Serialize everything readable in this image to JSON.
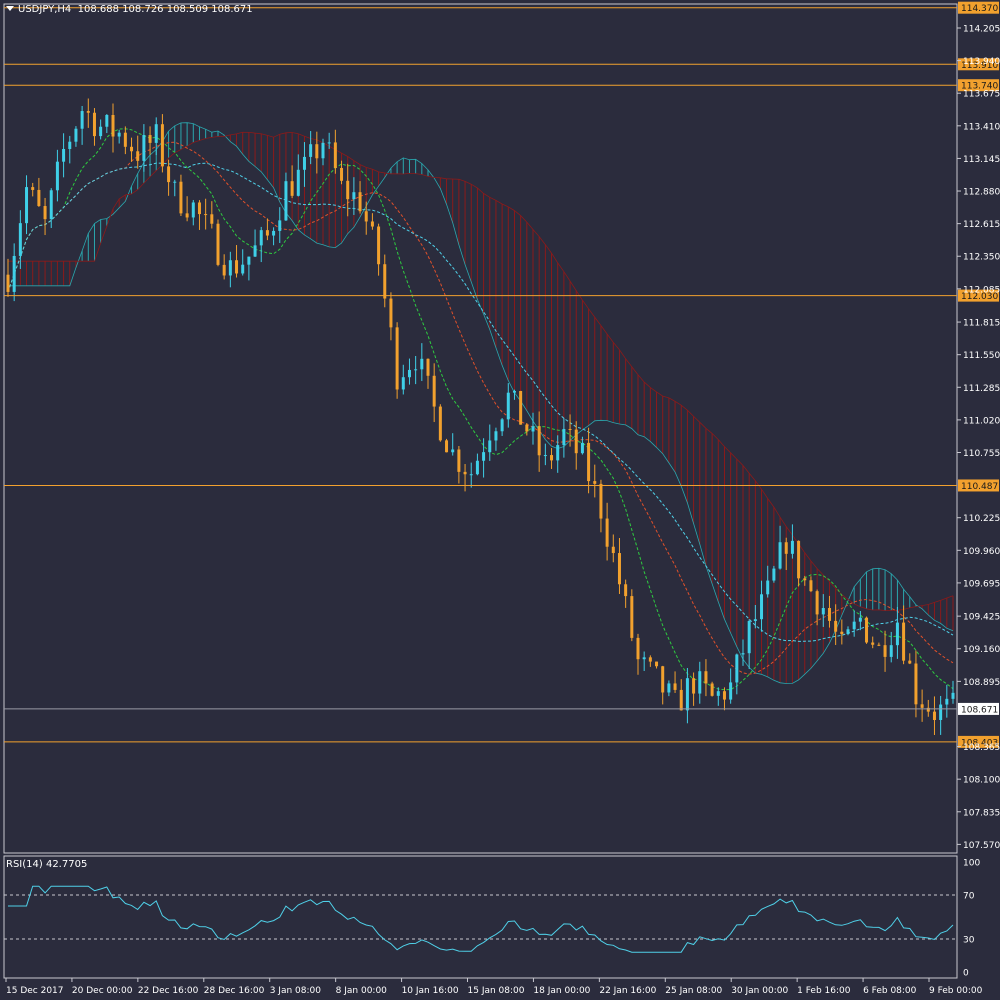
{
  "header": {
    "symbol": "USDJPY,H4",
    "ohlc": "108.688 108.726 108.509 108.671"
  },
  "rsi_header": {
    "label": "RSI(14) 42.7705"
  },
  "colors": {
    "background": "#2b2c3d",
    "bull_candle": "#3fd0e8",
    "bear_candle": "#f2a12e",
    "level_line": "#f2a12e",
    "cloud_bear": "#8b1a1a",
    "cloud_bull": "#2aa7ae",
    "ma_fast": "#2ecc40",
    "ma_mid": "#e0502a",
    "ma_slow": "#4fd0e8",
    "rsi_line": "#4fd0e8",
    "price_line": "#9a9aa6"
  },
  "chart_data": [
    {
      "type": "candlestick",
      "title": "USDJPY,H4",
      "y_ticks": [
        "114.205",
        "113.940",
        "113.675",
        "113.410",
        "113.145",
        "112.880",
        "112.615",
        "112.350",
        "112.085",
        "111.815",
        "111.550",
        "111.285",
        "111.020",
        "110.755",
        "110.225",
        "109.960",
        "109.695",
        "109.425",
        "109.160",
        "108.895",
        "108.365",
        "108.100",
        "107.835",
        "107.570"
      ],
      "x_ticks": [
        "15 Dec 2017",
        "20 Dec 00:00",
        "22 Dec 16:00",
        "28 Dec 16:00",
        "3 Jan 08:00",
        "8 Jan 00:00",
        "10 Jan 16:00",
        "15 Jan 08:00",
        "18 Jan 00:00",
        "22 Jan 16:00",
        "25 Jan 08:00",
        "30 Jan 00:00",
        "1 Feb 16:00",
        "6 Feb 08:00",
        "9 Feb 00:00"
      ],
      "ylim": [
        107.5,
        114.4
      ],
      "levels": [
        "114.370",
        "113.910",
        "113.740",
        "112.030",
        "110.487",
        "108.403"
      ],
      "current_price": "108.671",
      "close_path": [
        [
          0,
          112.2
        ],
        [
          3,
          112.9
        ],
        [
          6,
          112.6
        ],
        [
          9,
          113.2
        ],
        [
          12,
          113.55
        ],
        [
          15,
          113.4
        ],
        [
          18,
          113.35
        ],
        [
          21,
          113.2
        ],
        [
          24,
          113.3
        ],
        [
          27,
          112.85
        ],
        [
          30,
          112.75
        ],
        [
          33,
          112.5
        ],
        [
          36,
          112.25
        ],
        [
          39,
          112.35
        ],
        [
          42,
          112.5
        ],
        [
          45,
          112.9
        ],
        [
          48,
          113.05
        ],
        [
          51,
          113.3
        ],
        [
          54,
          112.9
        ],
        [
          57,
          112.8
        ],
        [
          60,
          112.3
        ],
        [
          63,
          111.4
        ],
        [
          66,
          111.55
        ],
        [
          69,
          111.1
        ],
        [
          72,
          110.75
        ],
        [
          75,
          110.6
        ],
        [
          78,
          110.95
        ],
        [
          81,
          111.2
        ],
        [
          84,
          110.95
        ],
        [
          87,
          110.65
        ],
        [
          90,
          110.9
        ],
        [
          93,
          110.7
        ],
        [
          96,
          110.3
        ],
        [
          99,
          109.7
        ],
        [
          102,
          109.05
        ],
        [
          105,
          108.9
        ],
        [
          108,
          108.7
        ],
        [
          111,
          108.9
        ],
        [
          114,
          108.75
        ],
        [
          117,
          108.85
        ],
        [
          120,
          109.3
        ],
        [
          123,
          109.6
        ],
        [
          126,
          110.05
        ],
        [
          129,
          109.7
        ],
        [
          132,
          109.5
        ],
        [
          135,
          109.15
        ],
        [
          138,
          109.4
        ],
        [
          141,
          109.15
        ],
        [
          144,
          109.4
        ],
        [
          147,
          108.8
        ],
        [
          150,
          108.65
        ],
        [
          153,
          108.67
        ]
      ],
      "rsi": {
        "label": "RSI(14) 42.7705",
        "levels": [
          70,
          30
        ],
        "ticks": [
          "100",
          "70",
          "30",
          "0"
        ],
        "last": 42.7705
      }
    }
  ]
}
